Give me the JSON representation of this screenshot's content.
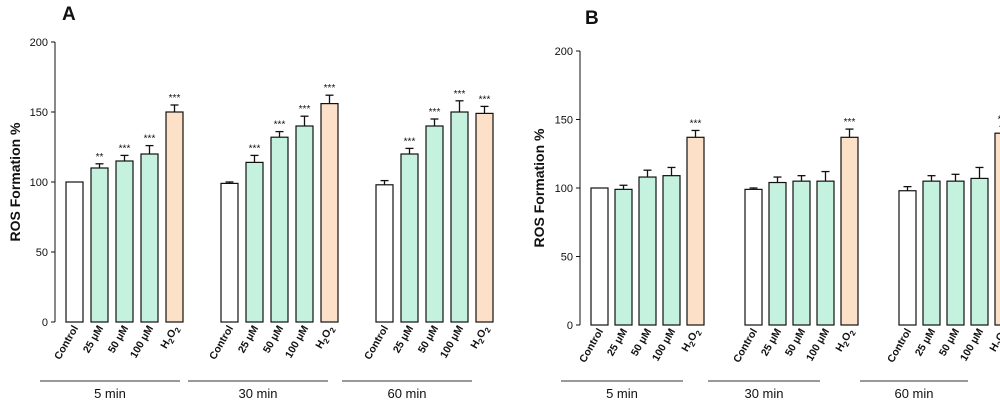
{
  "chart_data": [
    {
      "panel": "A",
      "type": "bar",
      "ylabel": "ROS Formation %",
      "ylim": [
        0,
        200
      ],
      "yticks": [
        0,
        50,
        100,
        150,
        200
      ],
      "categories": [
        "Control",
        "25 μM",
        "50 μM",
        "100 μM",
        "H2O2"
      ],
      "groups": [
        {
          "label": "5 min",
          "values": [
            100,
            110,
            115,
            120,
            150
          ],
          "errors": [
            0,
            3,
            4,
            6,
            5
          ],
          "significance": [
            "",
            "**",
            "***",
            "***",
            "***"
          ]
        },
        {
          "label": "30 min",
          "values": [
            99,
            114,
            132,
            140,
            156
          ],
          "errors": [
            1,
            5,
            4,
            7,
            6
          ],
          "significance": [
            "",
            "***",
            "***",
            "***",
            "***"
          ]
        },
        {
          "label": "60 min",
          "values": [
            98,
            120,
            140,
            150,
            149
          ],
          "errors": [
            3,
            4,
            5,
            8,
            5
          ],
          "significance": [
            "",
            "***",
            "***",
            "***",
            "***"
          ]
        }
      ],
      "colors": {
        "control": "#ffffff",
        "treatment": "#c5f2de",
        "h2o2": "#fde0c8",
        "stroke": "#111111"
      }
    },
    {
      "panel": "B",
      "type": "bar",
      "ylabel": "ROS Formation %",
      "ylim": [
        0,
        200
      ],
      "yticks": [
        0,
        50,
        100,
        150,
        200
      ],
      "categories": [
        "Control",
        "25 μM",
        "50 μM",
        "100 μM",
        "H2O2"
      ],
      "groups": [
        {
          "label": "5 min",
          "values": [
            100,
            99,
            108,
            109,
            137
          ],
          "errors": [
            0,
            3,
            5,
            6,
            5
          ],
          "significance": [
            "",
            "",
            "",
            "",
            "***"
          ]
        },
        {
          "label": "30 min",
          "values": [
            99,
            104,
            105,
            105,
            137
          ],
          "errors": [
            1,
            4,
            4,
            7,
            6
          ],
          "significance": [
            "",
            "",
            "",
            "",
            "***"
          ]
        },
        {
          "label": "60 min",
          "values": [
            98,
            105,
            105,
            107,
            140
          ],
          "errors": [
            3,
            4,
            5,
            8,
            5
          ],
          "significance": [
            "",
            "",
            "",
            "",
            "***"
          ]
        }
      ],
      "colors": {
        "control": "#ffffff",
        "treatment": "#c5f2de",
        "h2o2": "#fde0c8",
        "stroke": "#111111"
      }
    }
  ]
}
